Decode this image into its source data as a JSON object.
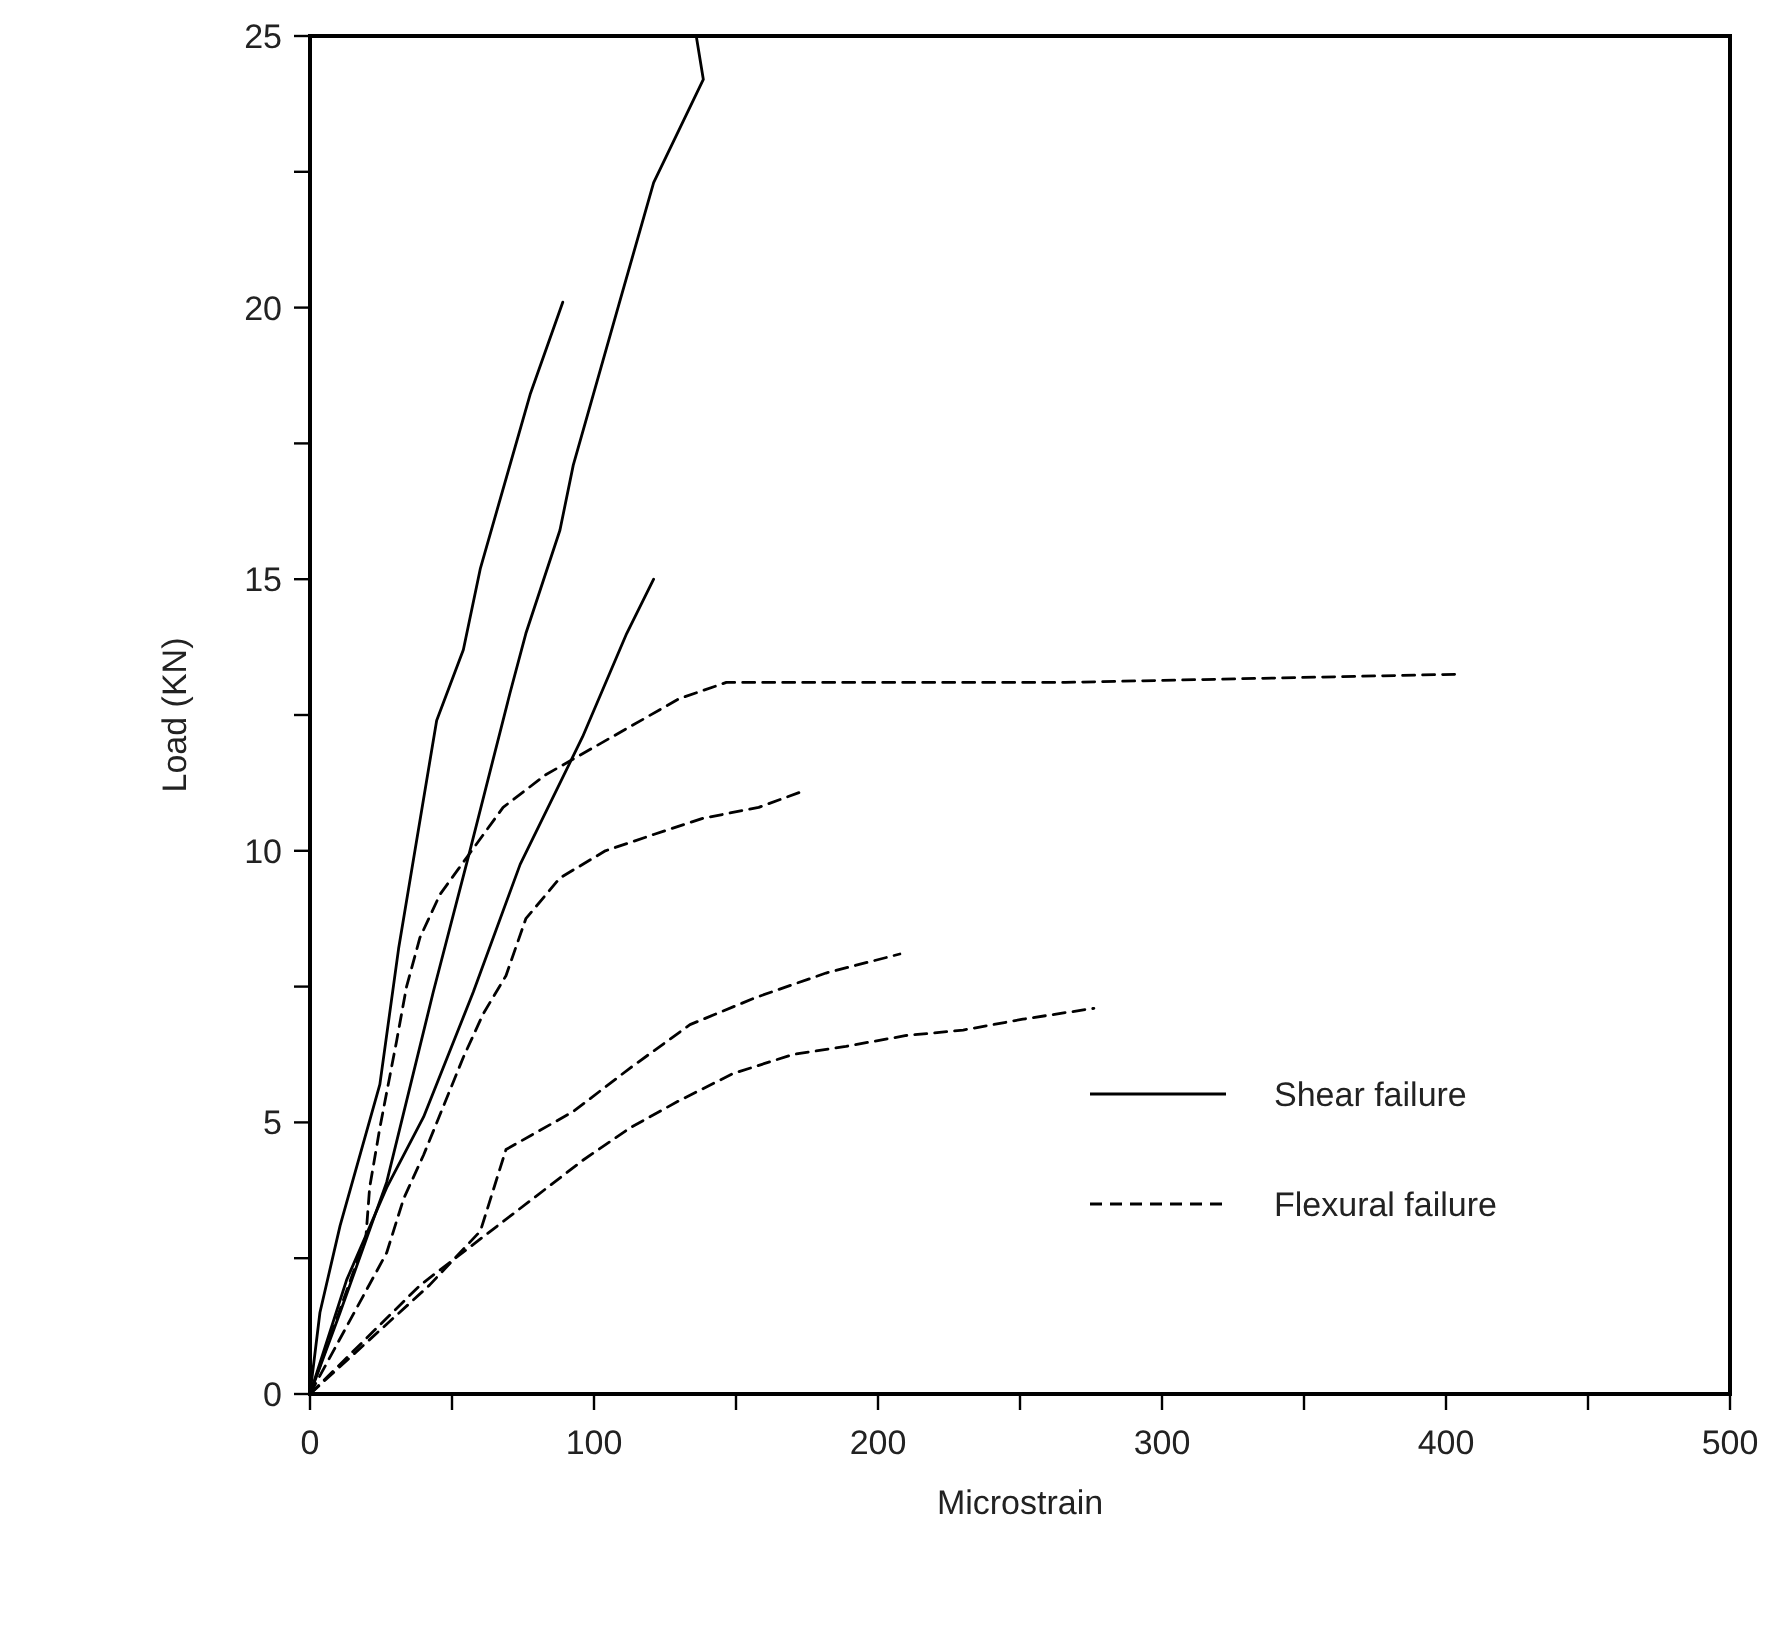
{
  "chart_data": {
    "type": "line",
    "xlabel": "Microstrain",
    "ylabel": "Load (KN)",
    "xlim": [
      0,
      500
    ],
    "ylim": [
      0,
      25
    ],
    "xticks": [
      0,
      {
        "value": 50,
        "label": null
      },
      100,
      {
        "value": 150,
        "label": null
      },
      200,
      {
        "value": 250,
        "label": null
      },
      300,
      {
        "value": 350,
        "label": null
      },
      400,
      {
        "value": 450,
        "label": null
      },
      500
    ],
    "yticks": [
      0,
      {
        "value": 2.5,
        "label": null
      },
      5,
      {
        "value": 7.5,
        "label": null
      },
      10,
      {
        "value": 12.5,
        "label": null
      },
      15,
      {
        "value": 17.5,
        "label": null
      },
      20,
      {
        "value": 22.5,
        "label": null
      },
      25
    ],
    "grid": false,
    "legend": "bottom right",
    "marker": "none",
    "series": [
      {
        "name": "Shear failure",
        "color": "#000000",
        "line_style": "solid",
        "x": [
          0,
          3.5,
          10.6,
          24.6,
          31.2,
          44.6,
          54,
          60,
          77.5,
          89
        ],
        "values": [
          0,
          1.5,
          3.1,
          5.7,
          8.2,
          12.4,
          13.7,
          15.2,
          18.4,
          20.1
        ]
      },
      {
        "color": "#000000",
        "line_style": "solid",
        "x": [
          0,
          10.6,
          27,
          43.4,
          56.3,
          70.4,
          76,
          88,
          92.7,
          109,
          121,
          138.5,
          136
        ],
        "values": [
          0,
          1.5,
          3.9,
          7.4,
          10,
          12.9,
          14,
          15.9,
          17.1,
          20.1,
          22.3,
          24.2,
          25
        ]
      },
      {
        "color": "#000000",
        "line_style": "solid",
        "x": [
          0,
          12.9,
          27,
          40,
          57.5,
          74,
          96,
          111.5,
          121
        ],
        "values": [
          0,
          2.1,
          3.8,
          5.1,
          7.4,
          9.75,
          12.1,
          14,
          15
        ]
      },
      {
        "name": "Flexural failure",
        "color": "#000000",
        "line_style": "dashed",
        "x": [
          0,
          19.7,
          21,
          24.6,
          30.5,
          34,
          38.7,
          45.8,
          68,
          83,
          111.5,
          130,
          146.6,
          266,
          403.5
        ],
        "values": [
          0,
          2.9,
          3.8,
          4.9,
          6.5,
          7.5,
          8.4,
          9.2,
          10.8,
          11.4,
          12.25,
          12.8,
          13.1,
          13.1,
          13.25
        ]
      },
      {
        "color": "#000000",
        "line_style": "dashed",
        "x": [
          0,
          27,
          33,
          40,
          47,
          54,
          61,
          69,
          76,
          88,
          104,
          121,
          138.5,
          158,
          173.7
        ],
        "values": [
          0,
          2.6,
          3.6,
          4.4,
          5.3,
          6.2,
          7.0,
          7.7,
          8.75,
          9.5,
          10,
          10.3,
          10.6,
          10.8,
          11.1
        ]
      },
      {
        "color": "#000000",
        "line_style": "dashed",
        "x": [
          0,
          42,
          60,
          69,
          92.7,
          112.7,
          133.8,
          157,
          181.7,
          207.7
        ],
        "values": [
          0,
          2.0,
          3.0,
          4.5,
          5.2,
          6.0,
          6.8,
          7.3,
          7.75,
          8.1
        ]
      },
      {
        "color": "#000000",
        "line_style": "dashed",
        "x": [
          0,
          38.7,
          78.6,
          96,
          112.7,
          130,
          149,
          170,
          188.7,
          210,
          230,
          251,
          276
        ],
        "values": [
          0,
          2.0,
          3.6,
          4.3,
          4.9,
          5.4,
          5.9,
          6.25,
          6.4,
          6.6,
          6.7,
          6.9,
          7.1
        ]
      }
    ]
  }
}
